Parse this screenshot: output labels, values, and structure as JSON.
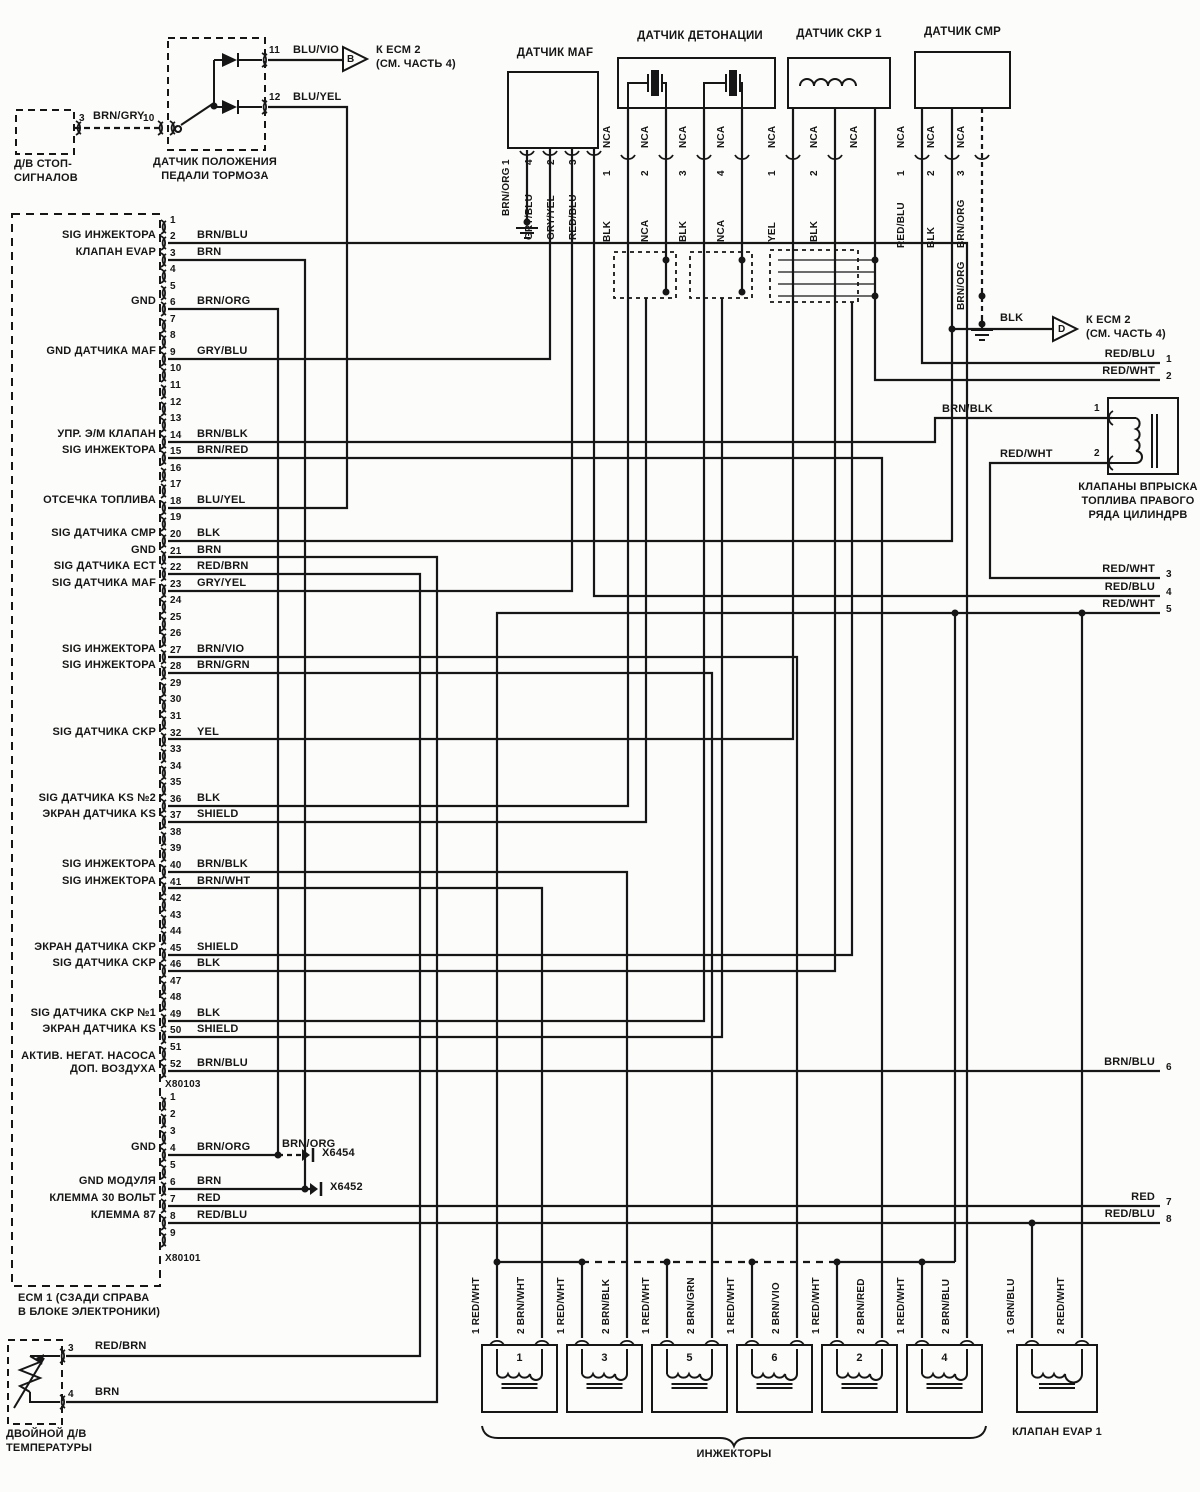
{
  "stop_lamp": {
    "line1": "Д/В СТОП-",
    "line2": "СИГНАЛОВ",
    "pin": "3",
    "wire": "BRN/GRY",
    "pin2": "10"
  },
  "brake": {
    "title1": "ДАТЧИК ПОЛОЖЕНИЯ",
    "title2": "ПЕДАЛИ ТОРМОЗА",
    "pin11": "11",
    "wire11": "BLU/VIO",
    "pin12": "12",
    "wire12": "BLU/YEL"
  },
  "offpage_b": {
    "letter": "B",
    "line1": "К ЕСМ 2",
    "line2": "(СМ. ЧАСТЬ 4)"
  },
  "offpage_d": {
    "letter": "D",
    "line1": "К ЕСМ 2",
    "line2": "(СМ. ЧАСТЬ 4)",
    "wire": "BLK"
  },
  "sensors": {
    "maf": {
      "title": "ДАТЧИК MAF",
      "pins": [
        {
          "n": "1",
          "wire": "BRN/ORG"
        },
        {
          "n": "4",
          "wire": "GRY/BLU"
        },
        {
          "n": "2",
          "wire": "GRY/YEL"
        },
        {
          "n": "3",
          "wire": "RED/BLU"
        }
      ]
    },
    "knock": {
      "title": "ДАТЧИК ДЕТОНАЦИИ",
      "leads": [
        "NCA",
        "NCA",
        "NCA",
        "NCA"
      ],
      "pins": [
        {
          "n": "1",
          "wire": "BLK"
        },
        {
          "n": "2",
          "wire": "NCA"
        },
        {
          "n": "3",
          "wire": "BLK"
        },
        {
          "n": "4",
          "wire": "NCA"
        }
      ]
    },
    "ckp": {
      "title": "ДАТЧИК CKP 1",
      "leads": [
        "NCA",
        "NCA",
        "NCA"
      ],
      "pins": [
        {
          "n": "1",
          "wire": "YEL"
        },
        {
          "n": "2",
          "wire": "BLK"
        }
      ]
    },
    "cmp": {
      "title": "ДАТЧИК CMP",
      "leads": [
        "NCA",
        "NCA",
        "NCA"
      ],
      "pins": [
        {
          "n": "1",
          "wire": "RED/BLU"
        },
        {
          "n": "2",
          "wire": "BLK"
        },
        {
          "n": "3",
          "wire": "BRN/ORG"
        }
      ],
      "extra_wire": "BRN/ORG"
    }
  },
  "valve_bank": {
    "n1": "1",
    "n2": "2",
    "w1": "BRN/BLK",
    "w2": "RED/WHT",
    "line1": "КЛАПАНЫ ВПРЫСКА",
    "line2": "ТОПЛИВА ПРАВОГО",
    "line3": "РЯДА ЦИЛИНДРВ"
  },
  "ecm1": {
    "connector": "X80103",
    "pins": [
      {
        "n": "1"
      },
      {
        "n": "2",
        "label": "SIG ИНЖЕКТОРА",
        "wire": "BRN/BLU"
      },
      {
        "n": "3",
        "label": "КЛАПАН EVAP",
        "wire": "BRN"
      },
      {
        "n": "4"
      },
      {
        "n": "5"
      },
      {
        "n": "6",
        "label": "GND",
        "wire": "BRN/ORG"
      },
      {
        "n": "7"
      },
      {
        "n": "8"
      },
      {
        "n": "9",
        "label": "GND ДАТЧИКА MAF",
        "wire": "GRY/BLU"
      },
      {
        "n": "10"
      },
      {
        "n": "11"
      },
      {
        "n": "12"
      },
      {
        "n": "13"
      },
      {
        "n": "14",
        "label": "УПР. Э/М КЛАПАН",
        "wire": "BRN/BLK"
      },
      {
        "n": "15",
        "label": "SIG ИНЖЕКТОРА",
        "wire": "BRN/RED"
      },
      {
        "n": "16"
      },
      {
        "n": "17"
      },
      {
        "n": "18",
        "label": "ОТСЕЧКА ТОПЛИВА",
        "wire": "BLU/YEL"
      },
      {
        "n": "19"
      },
      {
        "n": "20",
        "label": "SIG ДАТЧИКА CMP",
        "wire": "BLK"
      },
      {
        "n": "21",
        "label": "GND",
        "wire": "BRN"
      },
      {
        "n": "22",
        "label": "SIG ДАТЧИКА ECT",
        "wire": "RED/BRN"
      },
      {
        "n": "23",
        "label": "SIG ДАТЧИКА MAF",
        "wire": "GRY/YEL"
      },
      {
        "n": "24"
      },
      {
        "n": "25"
      },
      {
        "n": "26"
      },
      {
        "n": "27",
        "label": "SIG ИНЖЕКТОРА",
        "wire": "BRN/VIO"
      },
      {
        "n": "28",
        "label": "SIG ИНЖЕКТОРА",
        "wire": "BRN/GRN"
      },
      {
        "n": "29"
      },
      {
        "n": "30"
      },
      {
        "n": "31"
      },
      {
        "n": "32",
        "label": "SIG ДАТЧИКА CKP",
        "wire": "YEL"
      },
      {
        "n": "33"
      },
      {
        "n": "34"
      },
      {
        "n": "35"
      },
      {
        "n": "36",
        "label": "SIG ДАТЧИКА KS №2",
        "wire": "BLK"
      },
      {
        "n": "37",
        "label": "ЭКРАН ДАТЧИКА KS",
        "wire": "SHIELD"
      },
      {
        "n": "38"
      },
      {
        "n": "39"
      },
      {
        "n": "40",
        "label": "SIG ИНЖЕКТОРА",
        "wire": "BRN/BLK"
      },
      {
        "n": "41",
        "label": "SIG ИНЖЕКТОРА",
        "wire": "BRN/WHT"
      },
      {
        "n": "42"
      },
      {
        "n": "43"
      },
      {
        "n": "44"
      },
      {
        "n": "45",
        "label": "ЭКРАН ДАТЧИКА CKP",
        "wire": "SHIELD"
      },
      {
        "n": "46",
        "label": "SIG ДАТЧИКА CKP",
        "wire": "BLK"
      },
      {
        "n": "47"
      },
      {
        "n": "48"
      },
      {
        "n": "49",
        "label": "SIG ДАТЧИКА CKP №1",
        "wire": "BLK"
      },
      {
        "n": "50",
        "label": "ЭКРАН ДАТЧИКА KS",
        "wire": "SHIELD"
      },
      {
        "n": "51"
      },
      {
        "n": "52",
        "label": "АКТИВ. НЕГАТ. НАСОСА",
        "label2": "ДОП. ВОЗДУХА",
        "wire": "BRN/BLU"
      }
    ]
  },
  "ecm2": {
    "connector": "X80101",
    "pins": [
      {
        "n": "1"
      },
      {
        "n": "2"
      },
      {
        "n": "3"
      },
      {
        "n": "4",
        "label": "GND",
        "wire": "BRN/ORG"
      },
      {
        "n": "5"
      },
      {
        "n": "6",
        "label": "GND МОДУЛЯ",
        "wire": "BRN"
      },
      {
        "n": "7",
        "label": "КЛЕММА 30 ВОЛЬТ",
        "wire": "RED"
      },
      {
        "n": "8",
        "label": "КЛЕММА 87",
        "wire": "RED/BLU"
      },
      {
        "n": "9"
      }
    ]
  },
  "ecm_label1": "ЕСМ 1 (СЗАДИ СПРАВА",
  "ecm_label2": "В БЛОКЕ ЭЛЕКТРОНИКИ)",
  "grounds": {
    "x6454": "X6454",
    "x6452": "X6452"
  },
  "right_taps": [
    {
      "wire": "RED/BLU",
      "n": "1"
    },
    {
      "wire": "RED/WHT",
      "n": "2"
    },
    {
      "wire": "RED/WHT",
      "n": "3"
    },
    {
      "wire": "RED/BLU",
      "n": "4"
    },
    {
      "wire": "RED/WHT",
      "n": "5"
    },
    {
      "wire": "BRN/BLU",
      "n": "6"
    },
    {
      "wire": "RED",
      "n": "7"
    },
    {
      "wire": "RED/BLU",
      "n": "8"
    }
  ],
  "temp_sensor": {
    "line1": "ДВОЙНОЙ Д/В",
    "line2": "ТЕМПЕРАТУРЫ",
    "pin3": "3",
    "wire3": "RED/BRN",
    "pin4": "4",
    "wire4": "BRN"
  },
  "injectors": {
    "caption": "ИНЖЕКТОРЫ",
    "units": [
      {
        "num": "1",
        "pin1_n": "1",
        "pin1_wire": "RED/WHT",
        "pin2_n": "2",
        "pin2_wire": "BRN/WHT"
      },
      {
        "num": "3",
        "pin1_n": "1",
        "pin1_wire": "RED/WHT",
        "pin2_n": "2",
        "pin2_wire": "BRN/BLK"
      },
      {
        "num": "5",
        "pin1_n": "1",
        "pin1_wire": "RED/WHT",
        "pin2_n": "2",
        "pin2_wire": "BRN/GRN"
      },
      {
        "num": "6",
        "pin1_n": "1",
        "pin1_wire": "RED/WHT",
        "pin2_n": "2",
        "pin2_wire": "BRN/VIO"
      },
      {
        "num": "2",
        "pin1_n": "1",
        "pin1_wire": "RED/WHT",
        "pin2_n": "2",
        "pin2_wire": "BRN/RED"
      },
      {
        "num": "4",
        "pin1_n": "1",
        "pin1_wire": "RED/WHT",
        "pin2_n": "2",
        "pin2_wire": "BRN/BLU"
      }
    ]
  },
  "evap": {
    "label": "КЛАПАН EVAP 1",
    "pin1_n": "1",
    "pin1_wire": "GRN/BLU",
    "pin2_n": "2",
    "pin2_wire": "RED/WHT"
  }
}
